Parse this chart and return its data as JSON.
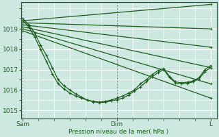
{
  "bg_color": "#cce8e0",
  "grid_color": "#ffffff",
  "line_color": "#1a5c1a",
  "marker": "+",
  "markersize": 3,
  "linewidth": 0.9,
  "xlabel": "Pression niveau de la mer( hPa )",
  "xtick_labels": [
    "Sam",
    "Dim",
    "L"
  ],
  "xtick_positions": [
    0,
    48,
    96
  ],
  "ylim": [
    1014.6,
    1020.3
  ],
  "yticks": [
    1015,
    1016,
    1017,
    1018,
    1019
  ],
  "xlim": [
    -1,
    99
  ],
  "fan_series": [
    {
      "x": [
        0,
        96
      ],
      "y": [
        1019.4,
        1020.2
      ]
    },
    {
      "x": [
        0,
        96
      ],
      "y": [
        1019.3,
        1019.0
      ]
    },
    {
      "x": [
        0,
        96
      ],
      "y": [
        1019.2,
        1018.1
      ]
    },
    {
      "x": [
        0,
        96
      ],
      "y": [
        1019.1,
        1017.1
      ]
    },
    {
      "x": [
        0,
        96
      ],
      "y": [
        1019.0,
        1016.3
      ]
    },
    {
      "x": [
        0,
        96
      ],
      "y": [
        1018.9,
        1015.6
      ]
    }
  ],
  "detail_series": {
    "x": [
      0,
      3,
      6,
      9,
      12,
      15,
      18,
      21,
      24,
      27,
      30,
      33,
      36,
      39,
      42,
      45,
      48,
      51,
      54,
      57,
      60,
      63,
      66,
      69,
      72,
      75,
      78,
      81,
      84,
      87,
      90,
      93,
      96
    ],
    "y": [
      1019.4,
      1019.1,
      1018.6,
      1018.0,
      1017.4,
      1016.8,
      1016.3,
      1016.05,
      1015.85,
      1015.7,
      1015.6,
      1015.5,
      1015.45,
      1015.4,
      1015.45,
      1015.5,
      1015.6,
      1015.7,
      1015.85,
      1016.0,
      1016.3,
      1016.5,
      1016.75,
      1016.95,
      1017.05,
      1016.65,
      1016.4,
      1016.35,
      1016.38,
      1016.45,
      1016.6,
      1017.0,
      1017.2
    ]
  },
  "detail2_series": {
    "x": [
      0,
      3,
      6,
      9,
      12,
      15,
      18,
      21,
      24,
      27,
      30,
      33,
      36,
      39,
      42,
      45,
      48,
      51,
      54,
      57,
      60,
      63,
      66,
      69,
      72,
      75,
      78,
      81,
      84,
      87,
      90,
      93,
      96
    ],
    "y": [
      1019.5,
      1019.2,
      1018.8,
      1018.2,
      1017.7,
      1017.1,
      1016.5,
      1016.2,
      1016.0,
      1015.8,
      1015.65,
      1015.5,
      1015.42,
      1015.38,
      1015.4,
      1015.46,
      1015.52,
      1015.6,
      1015.75,
      1015.95,
      1016.15,
      1016.4,
      1016.65,
      1016.85,
      1017.0,
      1016.6,
      1016.35,
      1016.3,
      1016.32,
      1016.4,
      1016.55,
      1016.9,
      1017.1
    ]
  }
}
